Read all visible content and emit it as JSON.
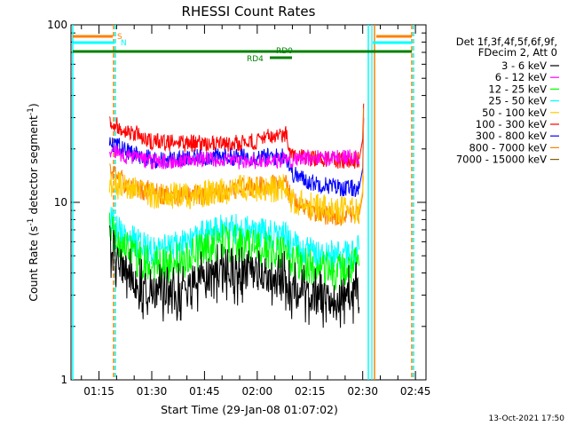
{
  "chart_data": {
    "type": "line",
    "title": "RHESSI Count Rates",
    "xlabel": "Start Time (29-Jan-08 01:07:02)",
    "ylabel_main": "Count Rate (s",
    "ylabel_sup1": "-1",
    "ylabel_mid": " detector segment",
    "ylabel_sup2": "-1",
    "ylabel_end": ")",
    "y_scale": "log",
    "ylim": [
      1,
      100
    ],
    "xlim": [
      "01:07:02",
      "02:48:00"
    ],
    "x_ticks": [
      "01:15",
      "01:30",
      "01:45",
      "02:00",
      "02:15",
      "02:30",
      "02:45"
    ],
    "y_ticks": [
      "1",
      "10",
      "100"
    ],
    "legend_header": [
      "Det 1f,3f,4f,5f,6f,9f,",
      "FDecim 2, Att 0"
    ],
    "legend_placement": "right",
    "series": [
      {
        "name": "3 - 6 keV",
        "color": "#000000",
        "x": [
          "01:18",
          "01:22",
          "01:26",
          "01:30",
          "01:35",
          "01:40",
          "01:45",
          "01:50",
          "01:55",
          "02:00",
          "02:05",
          "02:08",
          "02:10",
          "02:15",
          "02:20",
          "02:25",
          "02:29"
        ],
        "y": [
          5.5,
          4.2,
          3.4,
          3.1,
          3.0,
          3.3,
          3.8,
          4.0,
          3.9,
          3.8,
          3.7,
          3.6,
          3.1,
          3.0,
          2.8,
          2.9,
          3.2
        ]
      },
      {
        "name": "6 - 12 keV",
        "color": "#ff00ff",
        "x": [
          "01:18",
          "01:22",
          "01:26",
          "01:30",
          "01:35",
          "01:40",
          "01:45",
          "01:50",
          "01:55",
          "02:00",
          "02:05",
          "02:08",
          "02:10",
          "02:15",
          "02:20",
          "02:25",
          "02:29"
        ],
        "y": [
          19.5,
          18.5,
          17.5,
          17.0,
          17.0,
          17.3,
          17.5,
          17.3,
          17.0,
          17.0,
          17.2,
          17.5,
          17.3,
          17.8,
          17.8,
          17.8,
          18.2
        ]
      },
      {
        "name": "12 - 25 keV",
        "color": "#00ff00",
        "x": [
          "01:18",
          "01:22",
          "01:26",
          "01:30",
          "01:35",
          "01:40",
          "01:45",
          "01:50",
          "01:55",
          "02:00",
          "02:05",
          "02:08",
          "02:10",
          "02:15",
          "02:20",
          "02:25",
          "02:29"
        ],
        "y": [
          6.8,
          5.5,
          4.8,
          4.5,
          4.5,
          4.8,
          5.6,
          6.0,
          5.8,
          5.6,
          5.3,
          5.2,
          4.6,
          4.3,
          4.1,
          4.1,
          4.5
        ]
      },
      {
        "name": "25 - 50 keV",
        "color": "#00ffff",
        "x": [
          "01:18",
          "01:22",
          "01:26",
          "01:30",
          "01:35",
          "01:40",
          "01:45",
          "01:50",
          "01:55",
          "02:00",
          "02:05",
          "02:08",
          "02:10",
          "02:15",
          "02:20",
          "02:25",
          "02:29"
        ],
        "y": [
          8.0,
          6.6,
          5.8,
          5.4,
          5.5,
          5.8,
          6.6,
          7.2,
          7.0,
          6.8,
          6.5,
          6.4,
          5.7,
          5.2,
          5.0,
          5.0,
          5.4
        ]
      },
      {
        "name": "50 - 100 keV",
        "color": "#ffcc00",
        "x": [
          "01:18",
          "01:22",
          "01:26",
          "01:30",
          "01:35",
          "01:40",
          "01:45",
          "01:50",
          "01:55",
          "02:00",
          "02:05",
          "02:08",
          "02:10",
          "02:15",
          "02:20",
          "02:25",
          "02:29"
        ],
        "y": [
          13.0,
          12.0,
          11.5,
          11.0,
          11.0,
          11.0,
          11.2,
          11.5,
          12.0,
          12.0,
          11.8,
          12.5,
          10.0,
          9.5,
          9.2,
          9.0,
          9.0
        ]
      },
      {
        "name": "100 - 300 keV",
        "color": "#ff0000",
        "x": [
          "01:18",
          "01:22",
          "01:26",
          "01:30",
          "01:35",
          "01:40",
          "01:45",
          "01:50",
          "01:55",
          "02:00",
          "02:05",
          "02:08",
          "02:10",
          "02:15",
          "02:20",
          "02:25",
          "02:29"
        ],
        "y": [
          29.0,
          26.0,
          24.0,
          22.0,
          21.5,
          21.5,
          21.5,
          21.0,
          21.5,
          22.0,
          24.0,
          24.5,
          19.0,
          18.0,
          17.5,
          17.0,
          17.5
        ]
      },
      {
        "name": "300 - 800 keV",
        "color": "#0000ff",
        "x": [
          "01:18",
          "01:22",
          "01:26",
          "01:30",
          "01:35",
          "01:40",
          "01:45",
          "01:50",
          "01:55",
          "02:00",
          "02:05",
          "02:08",
          "02:10",
          "02:15",
          "02:20",
          "02:25",
          "02:29"
        ],
        "y": [
          22.0,
          20.0,
          18.5,
          17.5,
          17.5,
          17.5,
          18.0,
          18.0,
          18.0,
          18.0,
          18.0,
          18.5,
          14.5,
          13.0,
          12.5,
          12.0,
          12.0
        ]
      },
      {
        "name": "800 - 7000 keV",
        "color": "#ff8000",
        "x": [
          "01:18",
          "01:22",
          "01:26",
          "01:30",
          "01:35",
          "01:40",
          "01:45",
          "01:50",
          "01:55",
          "02:00",
          "02:05",
          "02:08",
          "02:10",
          "02:15",
          "02:20",
          "02:25",
          "02:29"
        ],
        "y": [
          15.0,
          13.0,
          12.0,
          11.5,
          11.0,
          11.0,
          11.0,
          11.5,
          12.0,
          12.5,
          12.5,
          13.0,
          10.0,
          9.0,
          8.5,
          8.3,
          8.5
        ]
      },
      {
        "name": "7000 - 15000 keV",
        "color": "#806000",
        "x": [],
        "y": []
      }
    ],
    "attenuator_bar": {
      "label": "S",
      "color": "#ff8000"
    },
    "night_bar": {
      "label": "N",
      "color": "#00ffff"
    },
    "decimation_labels": [
      "RD0",
      "RD4"
    ],
    "decimation_color": "#008000"
  },
  "footer": {
    "timestamp": "13-Oct-2021 17:50"
  }
}
